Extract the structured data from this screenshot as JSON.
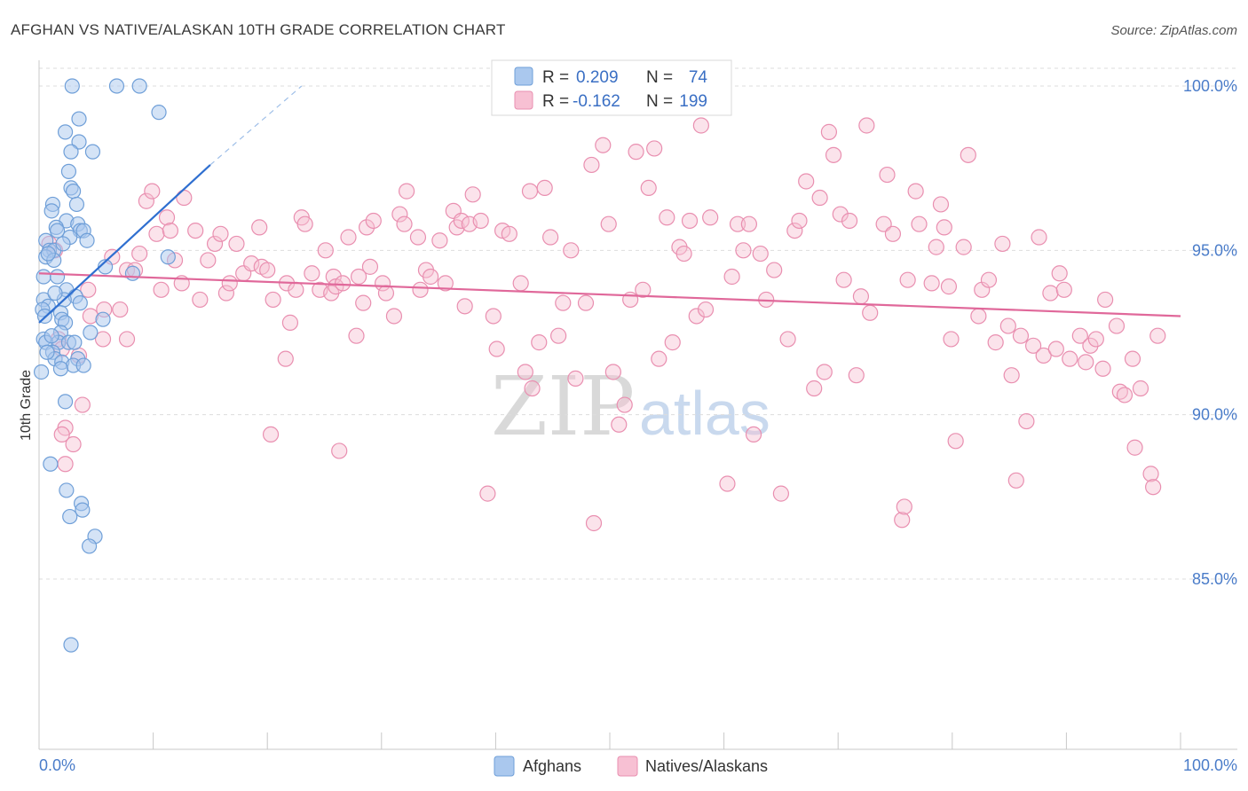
{
  "title": "AFGHAN VS NATIVE/ALASKAN 10TH GRADE CORRELATION CHART",
  "source": "Source: ZipAtlas.com",
  "watermark": {
    "zip": "ZIP",
    "atlas": "atlas"
  },
  "legend": {
    "r_label": "R =",
    "n_label": "N =",
    "rows": [
      {
        "r": "0.209",
        "n": "74"
      },
      {
        "r": "-0.162",
        "n": "199"
      }
    ]
  },
  "bottom_legend": [
    "Afghans",
    "Natives/Alaskans"
  ],
  "colors": {
    "afghan_fill": "#aac8ee",
    "afghan_stroke": "#6f9fd8",
    "afghan_line": "#2f6fd0",
    "native_fill": "#f7c0d3",
    "native_stroke": "#e98fb0",
    "native_line": "#e0689a",
    "grid": "#dddddd",
    "tick_text": "#4a7cc9"
  },
  "chart_data": {
    "type": "scatter",
    "title": "AFGHAN VS NATIVE/ALASKAN 10TH GRADE CORRELATION CHART",
    "xlabel": "",
    "ylabel": "10th Grade",
    "xlim": [
      0,
      100
    ],
    "ylim": [
      80.5,
      101.2
    ],
    "x_tick_labels": [
      "0.0%",
      "100.0%"
    ],
    "y_ticks": [
      85,
      90,
      95,
      100
    ],
    "y_tick_labels": [
      "85.0%",
      "90.0%",
      "95.0%",
      "100.0%"
    ],
    "grid": true,
    "legend_position": "top-center",
    "series": [
      {
        "name": "Afghans",
        "r": 0.209,
        "n": 74,
        "trend": {
          "x": [
            0,
            15
          ],
          "y": [
            92.8,
            97.6
          ],
          "dashed_to": [
            23,
            100.0
          ]
        },
        "points": [
          [
            2.9,
            100.0
          ],
          [
            6.8,
            100.0
          ],
          [
            8.8,
            100.0
          ],
          [
            10.5,
            99.2
          ],
          [
            3.5,
            99.0
          ],
          [
            2.3,
            98.6
          ],
          [
            3.5,
            98.3
          ],
          [
            2.8,
            98.0
          ],
          [
            4.7,
            98.0
          ],
          [
            2.6,
            97.4
          ],
          [
            2.8,
            96.9
          ],
          [
            3.0,
            96.8
          ],
          [
            1.2,
            96.4
          ],
          [
            3.3,
            96.4
          ],
          [
            1.1,
            96.2
          ],
          [
            2.4,
            95.9
          ],
          [
            3.4,
            95.8
          ],
          [
            1.5,
            95.7
          ],
          [
            3.6,
            95.6
          ],
          [
            3.9,
            95.6
          ],
          [
            2.7,
            95.4
          ],
          [
            1.6,
            95.6
          ],
          [
            4.2,
            95.3
          ],
          [
            0.6,
            95.3
          ],
          [
            0.9,
            95.0
          ],
          [
            1.3,
            95.0
          ],
          [
            0.6,
            94.8
          ],
          [
            1.3,
            94.7
          ],
          [
            11.3,
            94.8
          ],
          [
            5.8,
            94.5
          ],
          [
            8.2,
            94.3
          ],
          [
            0.4,
            94.2
          ],
          [
            1.6,
            94.2
          ],
          [
            2.4,
            93.8
          ],
          [
            3.2,
            93.6
          ],
          [
            0.4,
            93.5
          ],
          [
            2.2,
            93.5
          ],
          [
            0.8,
            93.3
          ],
          [
            1.9,
            93.1
          ],
          [
            0.3,
            93.2
          ],
          [
            5.6,
            92.9
          ],
          [
            2.0,
            92.9
          ],
          [
            2.3,
            92.8
          ],
          [
            1.9,
            92.5
          ],
          [
            4.5,
            92.5
          ],
          [
            0.4,
            92.3
          ],
          [
            0.6,
            92.2
          ],
          [
            1.7,
            92.2
          ],
          [
            2.6,
            92.2
          ],
          [
            1.2,
            91.9
          ],
          [
            1.4,
            91.7
          ],
          [
            3.4,
            91.7
          ],
          [
            2.0,
            91.6
          ],
          [
            3.0,
            91.5
          ],
          [
            3.9,
            91.5
          ],
          [
            1.9,
            91.4
          ],
          [
            0.2,
            91.3
          ],
          [
            2.3,
            90.4
          ],
          [
            1.0,
            88.5
          ],
          [
            2.4,
            87.7
          ],
          [
            3.7,
            87.3
          ],
          [
            3.8,
            87.1
          ],
          [
            2.7,
            86.9
          ],
          [
            4.9,
            86.3
          ],
          [
            4.4,
            86.0
          ],
          [
            2.8,
            83.0
          ],
          [
            0.8,
            94.9
          ],
          [
            1.1,
            92.4
          ],
          [
            0.5,
            93.0
          ],
          [
            3.1,
            92.2
          ],
          [
            1.4,
            93.7
          ],
          [
            2.1,
            95.2
          ],
          [
            0.7,
            91.9
          ],
          [
            3.6,
            93.4
          ]
        ]
      },
      {
        "name": "Natives/Alaskans",
        "r": -0.162,
        "n": 199,
        "trend": {
          "x": [
            0,
            100
          ],
          "y": [
            94.3,
            93.0
          ]
        },
        "points": [
          [
            0.9,
            95.2
          ],
          [
            1.4,
            95.0
          ],
          [
            1.7,
            92.3
          ],
          [
            2.0,
            92.0
          ],
          [
            2.3,
            89.6
          ],
          [
            2.0,
            89.4
          ],
          [
            2.3,
            88.5
          ],
          [
            3.0,
            89.1
          ],
          [
            3.5,
            91.8
          ],
          [
            3.8,
            90.3
          ],
          [
            4.3,
            93.8
          ],
          [
            4.5,
            93.0
          ],
          [
            5.7,
            93.2
          ],
          [
            5.6,
            92.3
          ],
          [
            6.4,
            94.8
          ],
          [
            7.1,
            93.2
          ],
          [
            7.7,
            94.4
          ],
          [
            7.7,
            92.3
          ],
          [
            8.4,
            94.4
          ],
          [
            8.8,
            94.9
          ],
          [
            9.4,
            96.5
          ],
          [
            9.9,
            96.8
          ],
          [
            10.3,
            95.5
          ],
          [
            10.7,
            93.8
          ],
          [
            11.2,
            96.0
          ],
          [
            11.5,
            95.6
          ],
          [
            11.9,
            94.7
          ],
          [
            12.5,
            94.0
          ],
          [
            12.7,
            96.6
          ],
          [
            13.7,
            95.6
          ],
          [
            14.1,
            93.5
          ],
          [
            14.8,
            94.7
          ],
          [
            15.4,
            95.2
          ],
          [
            15.9,
            95.5
          ],
          [
            16.4,
            93.7
          ],
          [
            16.7,
            94.0
          ],
          [
            17.3,
            95.2
          ],
          [
            17.9,
            94.3
          ],
          [
            18.6,
            94.6
          ],
          [
            19.3,
            95.7
          ],
          [
            19.5,
            94.5
          ],
          [
            20.0,
            94.4
          ],
          [
            20.3,
            89.4
          ],
          [
            20.5,
            93.5
          ],
          [
            21.6,
            91.7
          ],
          [
            21.7,
            94.0
          ],
          [
            22.0,
            92.8
          ],
          [
            22.5,
            93.8
          ],
          [
            23.0,
            96.0
          ],
          [
            23.3,
            95.8
          ],
          [
            23.9,
            94.3
          ],
          [
            24.6,
            93.8
          ],
          [
            25.1,
            95.0
          ],
          [
            25.6,
            93.7
          ],
          [
            25.8,
            94.2
          ],
          [
            26.0,
            93.9
          ],
          [
            26.3,
            88.9
          ],
          [
            26.6,
            94.0
          ],
          [
            27.1,
            95.4
          ],
          [
            27.8,
            92.4
          ],
          [
            28.0,
            94.2
          ],
          [
            28.4,
            93.4
          ],
          [
            28.7,
            95.7
          ],
          [
            29.0,
            94.5
          ],
          [
            29.3,
            95.9
          ],
          [
            30.1,
            94.0
          ],
          [
            30.4,
            93.7
          ],
          [
            31.1,
            93.0
          ],
          [
            31.6,
            96.1
          ],
          [
            32.0,
            95.8
          ],
          [
            32.2,
            96.8
          ],
          [
            33.2,
            95.4
          ],
          [
            33.4,
            93.8
          ],
          [
            33.9,
            94.4
          ],
          [
            34.3,
            94.2
          ],
          [
            35.1,
            95.3
          ],
          [
            35.6,
            94.0
          ],
          [
            36.3,
            96.2
          ],
          [
            36.6,
            95.7
          ],
          [
            37.0,
            95.9
          ],
          [
            37.3,
            93.3
          ],
          [
            37.7,
            95.8
          ],
          [
            38.0,
            96.7
          ],
          [
            38.7,
            95.9
          ],
          [
            39.3,
            87.6
          ],
          [
            39.8,
            93.0
          ],
          [
            40.1,
            92.0
          ],
          [
            40.6,
            95.6
          ],
          [
            41.2,
            95.5
          ],
          [
            42.2,
            94.0
          ],
          [
            42.6,
            91.3
          ],
          [
            43.0,
            96.8
          ],
          [
            43.2,
            90.8
          ],
          [
            43.8,
            92.2
          ],
          [
            44.3,
            96.9
          ],
          [
            44.8,
            95.4
          ],
          [
            45.5,
            92.4
          ],
          [
            45.9,
            93.4
          ],
          [
            46.6,
            95.0
          ],
          [
            47.0,
            91.1
          ],
          [
            47.9,
            93.4
          ],
          [
            48.4,
            97.6
          ],
          [
            48.6,
            86.7
          ],
          [
            49.4,
            98.2
          ],
          [
            49.9,
            95.8
          ],
          [
            50.3,
            91.3
          ],
          [
            50.8,
            89.7
          ],
          [
            51.3,
            90.3
          ],
          [
            51.8,
            93.5
          ],
          [
            52.3,
            98.0
          ],
          [
            52.9,
            93.8
          ],
          [
            53.4,
            96.9
          ],
          [
            53.9,
            98.1
          ],
          [
            54.3,
            91.7
          ],
          [
            55.0,
            96.0
          ],
          [
            55.5,
            92.2
          ],
          [
            56.1,
            95.1
          ],
          [
            56.5,
            94.9
          ],
          [
            57.0,
            95.9
          ],
          [
            57.6,
            93.0
          ],
          [
            58.0,
            98.8
          ],
          [
            58.4,
            93.2
          ],
          [
            58.8,
            96.0
          ],
          [
            60.3,
            87.9
          ],
          [
            60.7,
            94.2
          ],
          [
            61.2,
            95.8
          ],
          [
            61.7,
            95.0
          ],
          [
            62.2,
            95.8
          ],
          [
            62.6,
            89.4
          ],
          [
            63.2,
            94.9
          ],
          [
            63.7,
            93.5
          ],
          [
            64.4,
            94.4
          ],
          [
            65.0,
            87.6
          ],
          [
            65.6,
            92.3
          ],
          [
            66.2,
            95.6
          ],
          [
            66.6,
            95.9
          ],
          [
            67.2,
            97.1
          ],
          [
            67.9,
            90.8
          ],
          [
            68.4,
            96.6
          ],
          [
            68.8,
            91.3
          ],
          [
            69.2,
            98.6
          ],
          [
            69.6,
            97.9
          ],
          [
            70.2,
            96.1
          ],
          [
            70.5,
            94.1
          ],
          [
            71.0,
            95.9
          ],
          [
            71.6,
            91.2
          ],
          [
            72.0,
            93.6
          ],
          [
            72.5,
            98.8
          ],
          [
            72.8,
            93.1
          ],
          [
            74.0,
            95.8
          ],
          [
            74.3,
            97.3
          ],
          [
            74.8,
            95.5
          ],
          [
            75.6,
            86.8
          ],
          [
            75.8,
            87.2
          ],
          [
            76.1,
            94.1
          ],
          [
            76.8,
            96.8
          ],
          [
            77.1,
            95.8
          ],
          [
            78.2,
            94.0
          ],
          [
            78.6,
            95.1
          ],
          [
            79.0,
            96.4
          ],
          [
            79.3,
            95.7
          ],
          [
            79.7,
            93.9
          ],
          [
            79.9,
            92.3
          ],
          [
            80.3,
            89.2
          ],
          [
            81.0,
            95.1
          ],
          [
            81.4,
            97.9
          ],
          [
            82.3,
            93.0
          ],
          [
            82.6,
            93.8
          ],
          [
            83.2,
            94.1
          ],
          [
            83.8,
            92.2
          ],
          [
            84.4,
            95.2
          ],
          [
            84.9,
            92.7
          ],
          [
            85.2,
            91.2
          ],
          [
            85.6,
            88.0
          ],
          [
            86.0,
            92.4
          ],
          [
            86.5,
            89.8
          ],
          [
            87.1,
            92.1
          ],
          [
            87.6,
            95.4
          ],
          [
            88.0,
            91.8
          ],
          [
            88.6,
            93.7
          ],
          [
            89.1,
            92.0
          ],
          [
            89.4,
            94.3
          ],
          [
            89.8,
            93.8
          ],
          [
            90.3,
            91.7
          ],
          [
            91.2,
            92.4
          ],
          [
            91.7,
            91.6
          ],
          [
            92.1,
            92.1
          ],
          [
            92.6,
            92.3
          ],
          [
            93.2,
            91.4
          ],
          [
            93.4,
            93.5
          ],
          [
            94.4,
            92.7
          ],
          [
            94.7,
            90.7
          ],
          [
            95.1,
            90.6
          ],
          [
            95.8,
            91.7
          ],
          [
            96.0,
            89.0
          ],
          [
            96.5,
            90.8
          ],
          [
            97.4,
            88.2
          ],
          [
            97.6,
            87.8
          ],
          [
            98.0,
            92.4
          ]
        ]
      }
    ]
  }
}
